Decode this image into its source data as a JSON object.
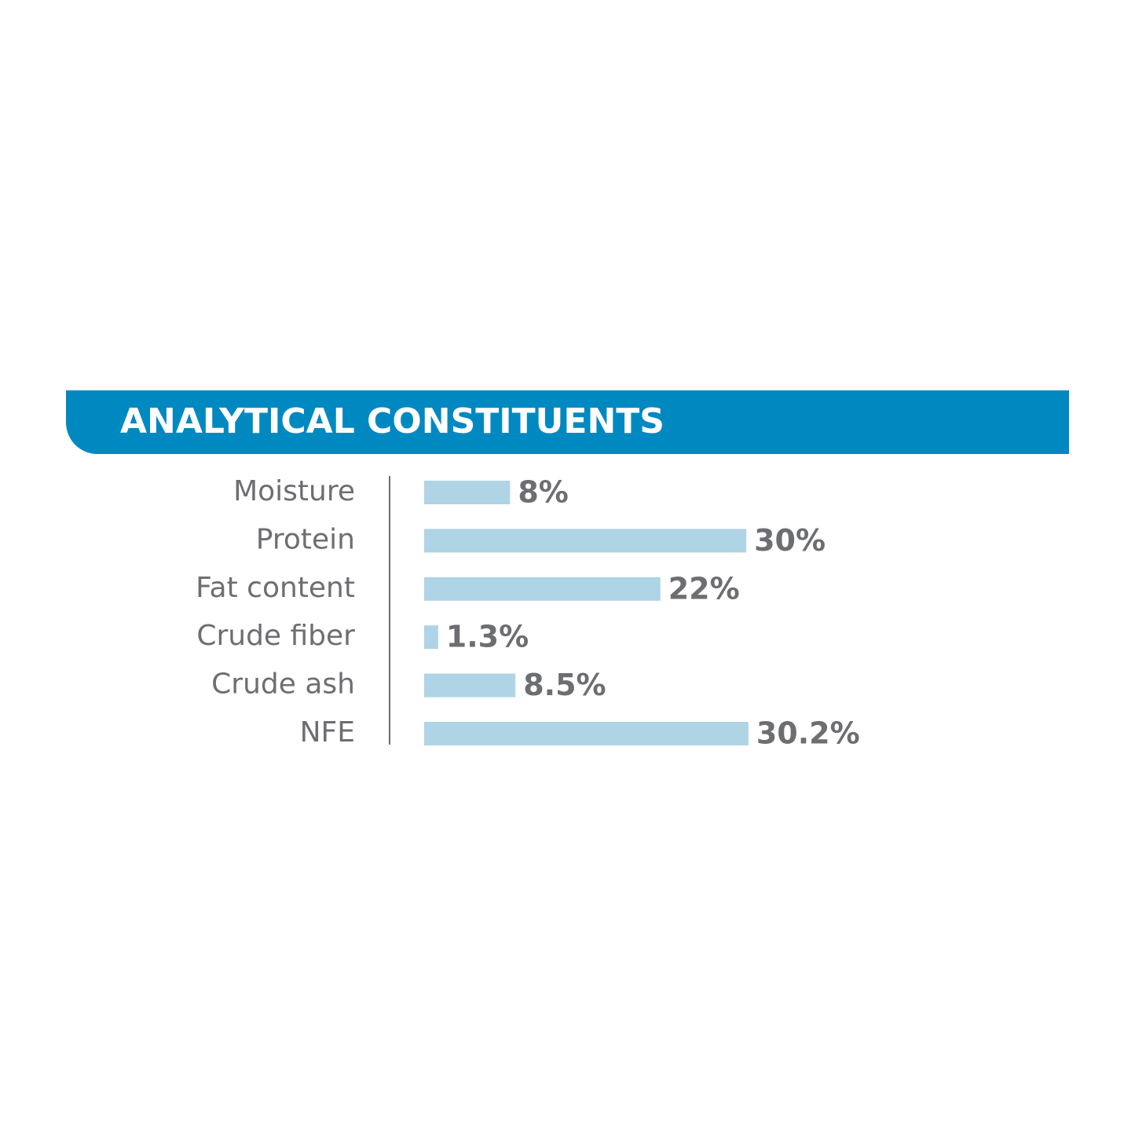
{
  "chart_data": {
    "type": "bar",
    "orientation": "horizontal",
    "title": "ANALYTICAL CONSTITUENTS",
    "categories": [
      "Moisture",
      "Protein",
      "Fat content",
      "Crude fiber",
      "Crude ash",
      "NFE"
    ],
    "values": [
      8,
      30,
      22,
      1.3,
      8.5,
      30.2
    ],
    "value_labels": [
      "8%",
      "30%",
      "22%",
      "1.3%",
      "8.5%",
      "30.2%"
    ],
    "color": "#aed4e6"
  }
}
